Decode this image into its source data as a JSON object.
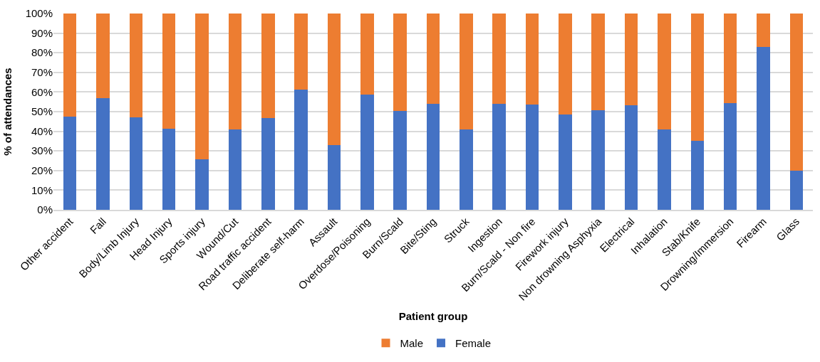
{
  "chart_data": {
    "type": "bar",
    "stacked": true,
    "xlabel": "Patient group",
    "ylabel": "% of attendances",
    "categories": [
      "Other accident",
      "Fall",
      "Body/Limb Injury",
      "Head Injury",
      "Sports injury",
      "Wound/Cut",
      "Road traffic accident",
      "Deliberate self-harm",
      "Assault",
      "Overdose/Poisoning",
      "Burn/Scald",
      "Bite/Sting",
      "Struck",
      "Ingestion",
      "Burn/Scald - Non fire",
      "Firework injury",
      "Non drowning Asphyxia",
      "Electrical",
      "Inhalation",
      "Stab/Knife",
      "Drowning/Immersion",
      "Firearm",
      "Glass"
    ],
    "series": [
      {
        "name": "Female",
        "color": "#4472c4",
        "values": [
          47.6,
          57.0,
          47.1,
          41.4,
          25.9,
          41.0,
          46.6,
          61.2,
          33.0,
          58.7,
          50.2,
          54.0,
          41.0,
          54.0,
          53.5,
          48.5,
          50.7,
          53.2,
          41.0,
          35.3,
          54.2,
          83.0,
          19.8
        ]
      },
      {
        "name": "Male",
        "color": "#ed7d31",
        "values": [
          52.4,
          43.0,
          52.9,
          58.6,
          74.1,
          59.0,
          53.4,
          38.8,
          67.0,
          41.3,
          49.8,
          46.0,
          59.0,
          46.0,
          46.5,
          51.5,
          49.3,
          46.8,
          59.0,
          64.7,
          45.8,
          17.0,
          80.2
        ]
      }
    ],
    "ylim": [
      0,
      100
    ],
    "yticks": [
      {
        "value": 0,
        "label": "0%"
      },
      {
        "value": 10,
        "label": "10%"
      },
      {
        "value": 20,
        "label": "20%"
      },
      {
        "value": 30,
        "label": "30%"
      },
      {
        "value": 40,
        "label": "40%"
      },
      {
        "value": 50,
        "label": "50%"
      },
      {
        "value": 60,
        "label": "60%"
      },
      {
        "value": 70,
        "label": "70%"
      },
      {
        "value": 80,
        "label": "80%"
      },
      {
        "value": 90,
        "label": "90%"
      },
      {
        "value": 100,
        "label": "100%"
      }
    ],
    "grid": "y",
    "legend": "bottom"
  }
}
